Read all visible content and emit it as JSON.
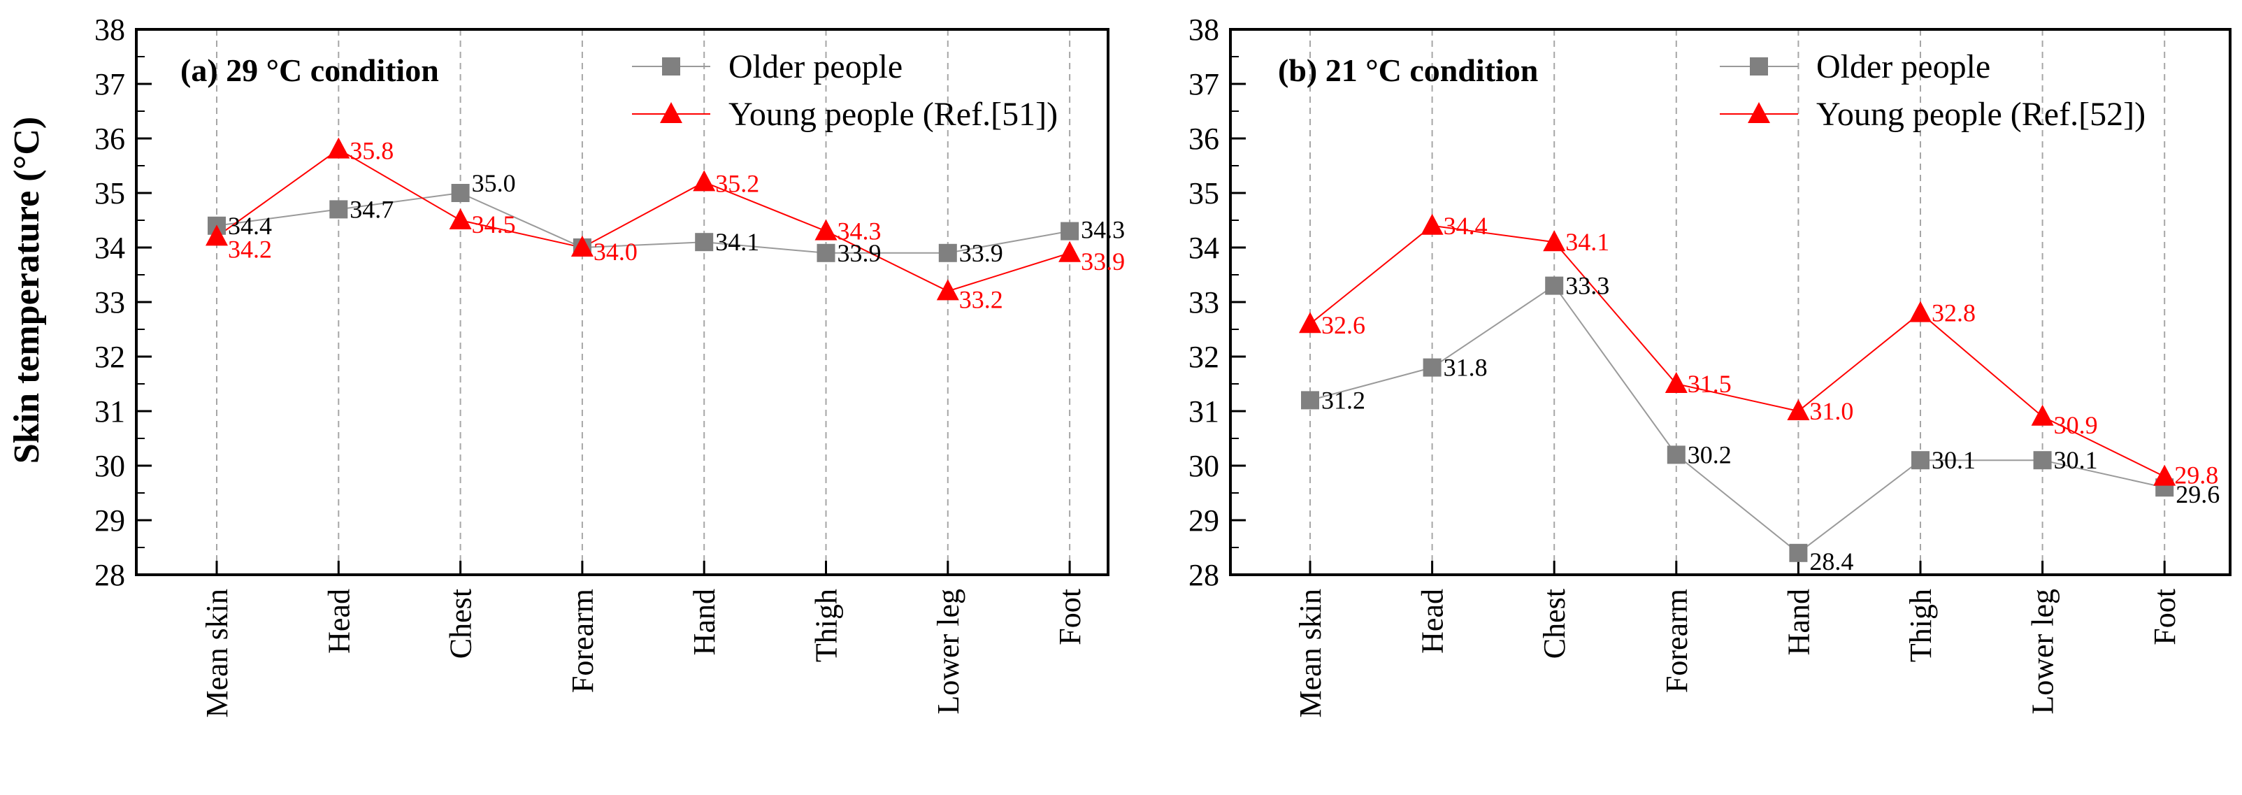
{
  "chart_data": [
    {
      "type": "line",
      "title": "(a) 29 °C condition",
      "xlabel": "",
      "ylabel": "Skin temperature (°C)",
      "ylim": [
        28,
        38
      ],
      "yticks": [
        28,
        29,
        30,
        31,
        32,
        33,
        34,
        35,
        36,
        37,
        38
      ],
      "categories": [
        "Mean skin",
        "Head",
        "Chest",
        "Forearm",
        "Hand",
        "Thigh",
        "Lower leg",
        "Foot"
      ],
      "grid": "vertical dashed",
      "legend_position": "top-right",
      "series": [
        {
          "name": "Older people",
          "color": "#808080",
          "marker": "square",
          "values": [
            34.4,
            34.7,
            35.0,
            34.0,
            34.1,
            33.9,
            33.9,
            34.3
          ],
          "labels": [
            "34.4",
            "34.7",
            "35.0",
            "",
            "34.1",
            "33.9",
            "33.9",
            "34.3"
          ]
        },
        {
          "name": "Young people (Ref.[51])",
          "color": "#ff0000",
          "marker": "triangle",
          "values": [
            34.2,
            35.8,
            34.5,
            34.0,
            35.2,
            34.3,
            33.2,
            33.9
          ],
          "labels": [
            "34.2",
            "35.8",
            "34.5",
            "34.0",
            "35.2",
            "34.3",
            "33.2",
            "33.9"
          ]
        }
      ]
    },
    {
      "type": "line",
      "title": "(b) 21 °C condition",
      "xlabel": "",
      "ylabel": "",
      "ylim": [
        28,
        38
      ],
      "yticks": [
        28,
        29,
        30,
        31,
        32,
        33,
        34,
        35,
        36,
        37,
        38
      ],
      "categories": [
        "Mean skin",
        "Head",
        "Chest",
        "Forearm",
        "Hand",
        "Thigh",
        "Lower leg",
        "Foot"
      ],
      "grid": "vertical dashed",
      "legend_position": "top-right",
      "series": [
        {
          "name": "Older people",
          "color": "#808080",
          "marker": "square",
          "values": [
            31.2,
            31.8,
            33.3,
            30.2,
            28.4,
            30.1,
            30.1,
            29.6
          ],
          "labels": [
            "31.2",
            "31.8",
            "33.3",
            "30.2",
            "28.4",
            "30.1",
            "30.1",
            "29.6"
          ]
        },
        {
          "name": "Young people (Ref.[52])",
          "color": "#ff0000",
          "marker": "triangle",
          "values": [
            32.6,
            34.4,
            34.1,
            31.5,
            31.0,
            32.8,
            30.9,
            29.8
          ],
          "labels": [
            "32.6",
            "34.4",
            "34.1",
            "31.5",
            "31.0",
            "32.8",
            "30.9",
            "29.8"
          ]
        }
      ]
    }
  ]
}
